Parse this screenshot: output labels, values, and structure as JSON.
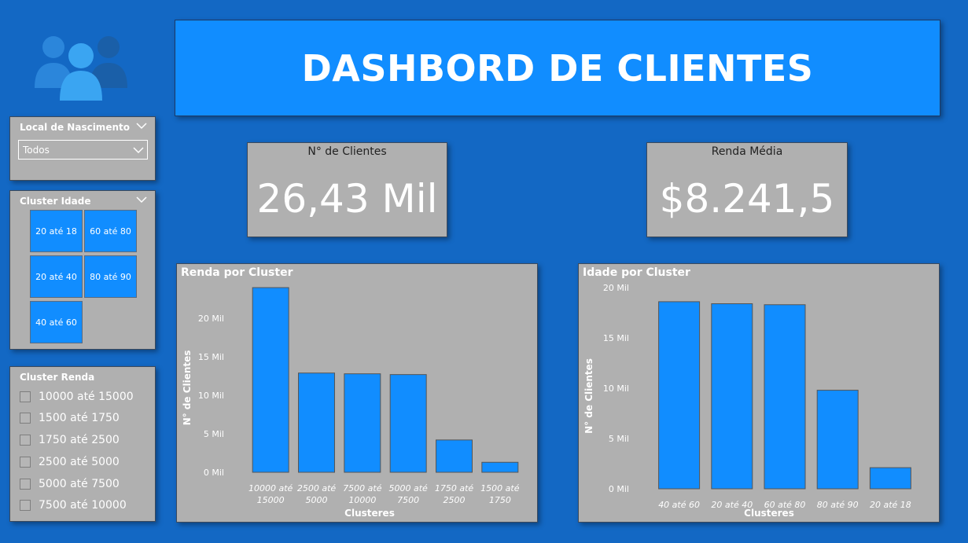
{
  "header": {
    "title": "DASHBORD DE CLIENTES"
  },
  "logo": {
    "icon": "people-icon"
  },
  "slicers": {
    "local": {
      "title": "Local de Nascimento",
      "selected": "Todos"
    },
    "idade": {
      "title": "Cluster Idade",
      "tiles": [
        "20 até 18",
        "60 até 80",
        "20 até 40",
        "80 até 90",
        "40 até 60"
      ]
    },
    "renda": {
      "title": "Cluster Renda",
      "items": [
        "10000 até 15000",
        "1500 até 1750",
        "1750 até 2500",
        "2500 até 5000",
        "5000 até 7500",
        "7500 até 10000"
      ]
    }
  },
  "kpis": {
    "clientes": {
      "title": "N° de Clientes",
      "value": "26,43 Mil"
    },
    "renda": {
      "title": "Renda Média",
      "value": "$8.241,5"
    }
  },
  "colors": {
    "background": "#1368c4",
    "accent": "#118dff",
    "panel": "#b0b0b0"
  },
  "chart_data": [
    {
      "type": "bar",
      "title": "Renda por Cluster",
      "xlabel": "Clusteres",
      "ylabel": "N° de Clientes",
      "categories": [
        "10000 até 15000",
        "2500 até 5000",
        "7500 até 10000",
        "5000 até 7500",
        "1750 até 2500",
        "1500 até 1750"
      ],
      "category_lines": [
        [
          "10000 até",
          "15000"
        ],
        [
          "2500 até",
          "5000"
        ],
        [
          "7500 até",
          "10000"
        ],
        [
          "5000 até",
          "7500"
        ],
        [
          "1750 até",
          "2500"
        ],
        [
          "1500 até",
          "1750"
        ]
      ],
      "values": [
        24000,
        12900,
        12800,
        12700,
        4200,
        1300
      ],
      "yticks": [
        "0 Mil",
        "5 Mil",
        "10 Mil",
        "15 Mil",
        "20 Mil"
      ],
      "ylim": [
        0,
        24000
      ]
    },
    {
      "type": "bar",
      "title": "Idade por Cluster",
      "xlabel": "Clusteres",
      "ylabel": "N° de Clientes",
      "categories": [
        "40 até 60",
        "20 até 40",
        "60 até 80",
        "80 até 90",
        "20 até 18"
      ],
      "category_lines": [
        [
          "40 até 60"
        ],
        [
          "20 até 40"
        ],
        [
          "60 até 80"
        ],
        [
          "80 até 90"
        ],
        [
          "20 até 18"
        ]
      ],
      "values": [
        18600,
        18400,
        18300,
        9800,
        2100
      ],
      "yticks": [
        "0 Mil",
        "5 Mil",
        "10 Mil",
        "15 Mil",
        "20 Mil"
      ],
      "ylim": [
        0,
        20000
      ]
    }
  ]
}
